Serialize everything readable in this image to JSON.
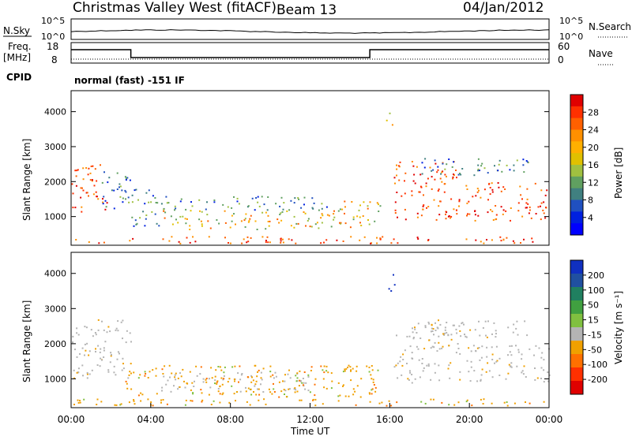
{
  "header": {
    "station": "Christmas Valley West (fitACF)",
    "beam": "Beam 13",
    "date": "04/Jan/2012"
  },
  "top_panels": {
    "nsky_label": "N.Sky",
    "nsky_ticks": [
      "10^5",
      "10^0"
    ],
    "nsearch_label": "N.Search",
    "nsearch_ticks": [
      "10^5",
      "10^0"
    ],
    "freq_label": "Freq.",
    "freq_unit": "[MHz]",
    "freq_ticks": [
      "18",
      "8"
    ],
    "nave_label": "Nave",
    "nave_ticks": [
      "60",
      "0"
    ],
    "cpid_label": "CPID",
    "cpid_text": "normal (fast) -151 IF"
  },
  "x_axis": {
    "label": "Time UT",
    "ticks": [
      "00:00",
      "04:00",
      "08:00",
      "12:00",
      "16:00",
      "20:00",
      "00:00"
    ]
  },
  "power_colorbar": {
    "label": "Power [dB]",
    "ticks": [
      "28",
      "24",
      "20",
      "16",
      "12",
      "8",
      "4"
    ],
    "colors": [
      "#e00000",
      "#ff3000",
      "#ff6000",
      "#ff9000",
      "#ffb000",
      "#e0c000",
      "#a0c040",
      "#60a060",
      "#408080",
      "#2050c0",
      "#0020e0",
      "#0000ff"
    ]
  },
  "velocity_colorbar": {
    "label": "Velocity [m s⁻¹]",
    "ticks": [
      "200",
      "100",
      "50",
      "15",
      "-15",
      "-50",
      "-100",
      "-200"
    ],
    "colors": [
      "#1030c0",
      "#2050a0",
      "#208060",
      "#40a040",
      "#80c040",
      "#b4b4b4",
      "#f0a000",
      "#ff7000",
      "#ff3000",
      "#e00000"
    ]
  },
  "chart_data": [
    {
      "type": "heatmap",
      "name": "power",
      "ylabel": "Slant Range [km]",
      "yticks": [
        1000,
        2000,
        3000,
        4000
      ],
      "ylim": [
        180,
        4600
      ],
      "xlim": [
        0,
        24
      ],
      "regions": [
        {
          "t0": 0.0,
          "t1": 1.8,
          "r0": 1100,
          "r1": 2500,
          "level": "high"
        },
        {
          "t0": 1.5,
          "t1": 3.0,
          "r0": 1200,
          "r1": 2400,
          "level": "low"
        },
        {
          "t0": 3.0,
          "t1": 4.5,
          "r0": 700,
          "r1": 1800,
          "level": "low"
        },
        {
          "t0": 4.5,
          "t1": 13.5,
          "r0": 650,
          "r1": 1200,
          "level": "mid"
        },
        {
          "t0": 4.5,
          "t1": 13.5,
          "r0": 1200,
          "r1": 1600,
          "level": "low"
        },
        {
          "t0": 13.0,
          "t1": 15.5,
          "r0": 700,
          "r1": 1500,
          "level": "mid"
        },
        {
          "t0": 0.0,
          "t1": 24.0,
          "r0": 250,
          "r1": 450,
          "level": "high"
        },
        {
          "t0": 15.8,
          "t1": 16.2,
          "r0": 3500,
          "r1": 4000,
          "level": "mid"
        },
        {
          "t0": 16.2,
          "t1": 19.5,
          "r0": 900,
          "r1": 2600,
          "level": "high"
        },
        {
          "t0": 19.8,
          "t1": 24.0,
          "r0": 900,
          "r1": 2000,
          "level": "high"
        },
        {
          "t0": 17.5,
          "t1": 23.0,
          "r0": 2200,
          "r1": 2700,
          "level": "low"
        }
      ]
    },
    {
      "type": "heatmap",
      "name": "velocity",
      "ylabel": "Slant Range [km]",
      "yticks": [
        1000,
        2000,
        3000,
        4000
      ],
      "ylim": [
        180,
        4600
      ],
      "xlim": [
        0,
        24
      ],
      "regions": [
        {
          "t0": 0.0,
          "t1": 3.0,
          "r0": 1000,
          "r1": 2700,
          "level": "grey"
        },
        {
          "t0": 4.5,
          "t1": 12.0,
          "r0": 650,
          "r1": 1200,
          "level": "grey"
        },
        {
          "t0": 2.5,
          "t1": 15.5,
          "r0": 500,
          "r1": 1400,
          "level": "neg"
        },
        {
          "t0": 0.0,
          "t1": 24.0,
          "r0": 250,
          "r1": 450,
          "level": "neg"
        },
        {
          "t0": 15.8,
          "t1": 16.3,
          "r0": 3500,
          "r1": 4000,
          "level": "pos"
        },
        {
          "t0": 16.2,
          "t1": 19.5,
          "r0": 900,
          "r1": 2600,
          "level": "grey"
        },
        {
          "t0": 19.8,
          "t1": 24.0,
          "r0": 900,
          "r1": 2000,
          "level": "grey"
        },
        {
          "t0": 17.5,
          "t1": 23.0,
          "r0": 2200,
          "r1": 2700,
          "level": "grey"
        }
      ]
    }
  ]
}
